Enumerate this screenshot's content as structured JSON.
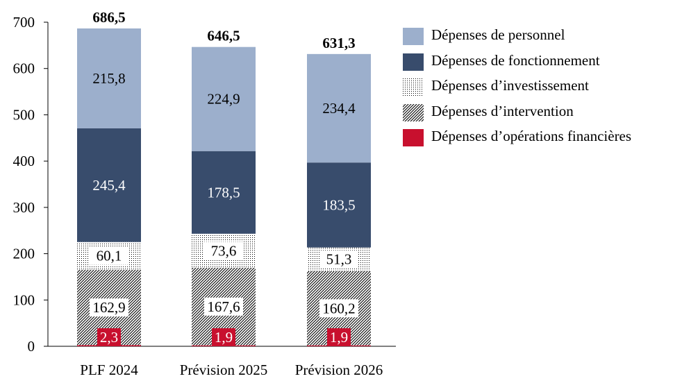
{
  "chart_data": {
    "type": "bar",
    "stacked": true,
    "categories": [
      "PLF 2024",
      "Prévision 2025",
      "Prévision 2026"
    ],
    "series": [
      {
        "name": "Dépenses d’opérations financières",
        "values": [
          2.3,
          1.9,
          1.9
        ],
        "labels": [
          "2,3",
          "1,9",
          "1,9"
        ],
        "color": "#c8102e",
        "pattern": "solid"
      },
      {
        "name": "Dépenses d’intervention",
        "values": [
          162.9,
          167.6,
          160.2
        ],
        "labels": [
          "162,9",
          "167,6",
          "160,2"
        ],
        "color": "#ffffff",
        "pattern": "hatch"
      },
      {
        "name": "Dépenses d’investissement",
        "values": [
          60.1,
          73.6,
          51.3
        ],
        "labels": [
          "60,1",
          "73,6",
          "51,3"
        ],
        "color": "#ffffff",
        "pattern": "dots"
      },
      {
        "name": "Dépenses de fonctionnement",
        "values": [
          245.4,
          178.5,
          183.5
        ],
        "labels": [
          "245,4",
          "178,5",
          "183,5"
        ],
        "color": "#384c6c",
        "pattern": "solid"
      },
      {
        "name": "Dépenses de personnel",
        "values": [
          215.8,
          224.9,
          234.4
        ],
        "labels": [
          "215,8",
          "224,9",
          "234,4"
        ],
        "color": "#9cafcc",
        "pattern": "solid"
      }
    ],
    "totals": [
      686.5,
      646.5,
      631.3
    ],
    "total_labels": [
      "686,5",
      "646,5",
      "631,3"
    ],
    "legend_order": [
      4,
      3,
      2,
      1,
      0
    ],
    "ylim": [
      0,
      700
    ],
    "yticks": [
      0,
      100,
      200,
      300,
      400,
      500,
      600,
      700
    ],
    "xlabel": "",
    "ylabel": "",
    "grid": false,
    "legend_position": "right"
  }
}
